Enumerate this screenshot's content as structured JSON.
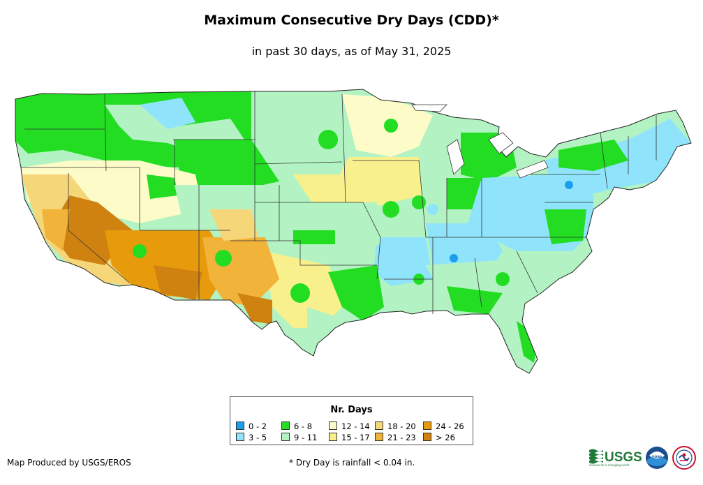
{
  "title": "Maximum Consecutive Dry Days (CDD)*",
  "subtitle": "in past 30 days, as of May 31, 2025",
  "legend": {
    "title": "Nr. Days",
    "items": [
      {
        "label": "0 - 2",
        "color": "#1a9ff0"
      },
      {
        "label": "3 - 5",
        "color": "#8fe4fb"
      },
      {
        "label": "6 - 8",
        "color": "#22dd22"
      },
      {
        "label": "9 - 11",
        "color": "#b3f3c3"
      },
      {
        "label": "12 - 14",
        "color": "#fdfcc8"
      },
      {
        "label": "15 - 17",
        "color": "#f8f08c"
      },
      {
        "label": "18 - 20",
        "color": "#f5d77a"
      },
      {
        "label": "21 - 23",
        "color": "#f2b33a"
      },
      {
        "label": "24 - 26",
        "color": "#e69a0c"
      },
      {
        "label": "> 26",
        "color": "#cf8210"
      }
    ]
  },
  "footer": {
    "producer": "Map Produced by USGS/EROS",
    "note": "* Dry Day is rainfall < 0.04 in."
  },
  "logos": {
    "usgs": "USGS",
    "usgs_tagline": "science for a changing world",
    "noaa": "noaa"
  }
}
